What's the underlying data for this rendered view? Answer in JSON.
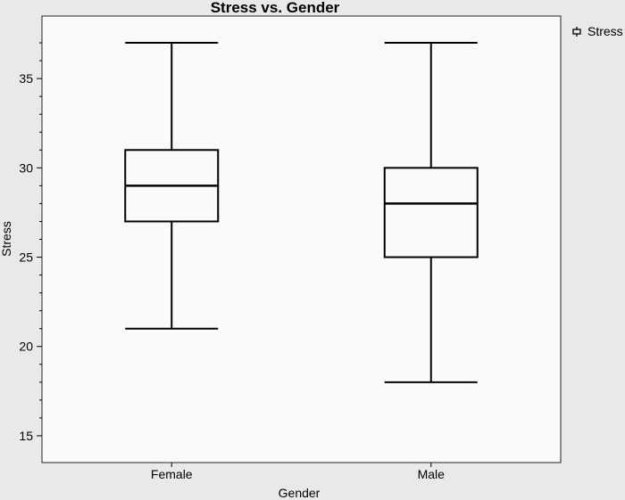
{
  "chart_data": {
    "type": "boxplot",
    "title": "Stress vs. Gender",
    "xlabel": "Gender",
    "ylabel": "Stress",
    "categories": [
      "Female",
      "Male"
    ],
    "boxes": [
      {
        "category": "Female",
        "min": 21,
        "q1": 27,
        "median": 29,
        "q3": 31,
        "max": 37
      },
      {
        "category": "Male",
        "min": 18,
        "q1": 25,
        "median": 28,
        "q3": 30,
        "max": 37
      }
    ],
    "ylim": [
      13.5,
      38.5
    ],
    "yticks": [
      15,
      20,
      25,
      30,
      35
    ],
    "yminor_ticks": [
      16,
      17,
      18,
      19,
      21,
      22,
      23,
      24,
      26,
      27,
      28,
      29,
      31,
      32,
      33,
      34,
      36,
      37
    ],
    "legend": {
      "label": "Stress",
      "position": "top-right"
    },
    "grid": false,
    "colors": {
      "background": "#e9e9e9",
      "plot_background": "#fafafa",
      "line": "#000000"
    }
  }
}
